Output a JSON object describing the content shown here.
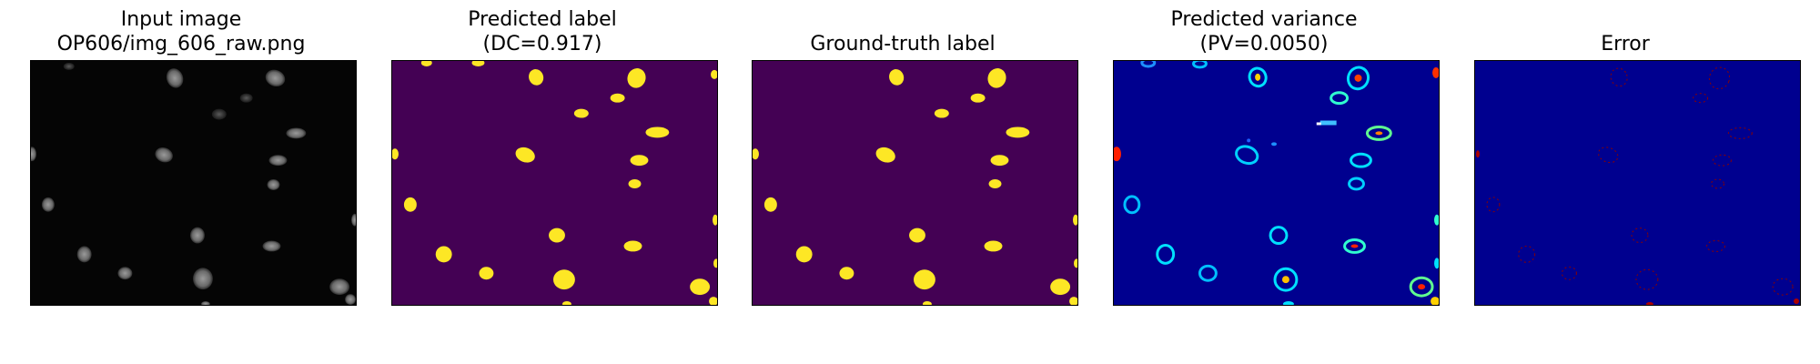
{
  "panels": [
    {
      "title_line1": "Input image",
      "title_line2": "OP606/img_606_raw.png"
    },
    {
      "title_line1": "Predicted label",
      "title_line2": "(DC=0.917)"
    },
    {
      "title_line1": "",
      "title_line2": "Ground-truth label"
    },
    {
      "title_line1": "Predicted variance",
      "title_line2": "(PV=0.0050)"
    },
    {
      "title_line1": "",
      "title_line2": "Error"
    }
  ],
  "colors": {
    "label_background": "#440154",
    "label_foreground": "#fde725",
    "jet_background": "#00008f",
    "raw_background": "#050505",
    "raw_nucleus": "#7a7a7a"
  }
}
